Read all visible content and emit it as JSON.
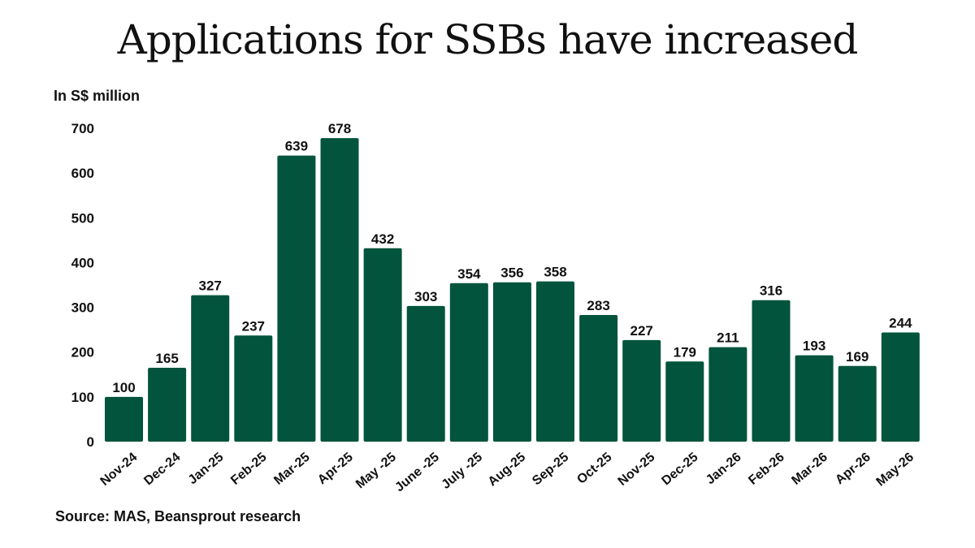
{
  "title": "Applications for SSBs have increased",
  "source": "Source: MAS, Beansprout research",
  "colors": {
    "bar": "#02543c",
    "text": "#111111",
    "background": "#ffffff"
  },
  "chart_data": {
    "type": "bar",
    "title": "Applications for SSBs have increased",
    "ylabel": "In S$ million",
    "xlabel": "",
    "ylim": [
      0,
      700
    ],
    "yticks": [
      0,
      100,
      200,
      300,
      400,
      500,
      600,
      700
    ],
    "grid": false,
    "legend": "none",
    "categories": [
      "Nov-24",
      "Dec-24",
      "Jan-25",
      "Feb-25",
      "Mar-25",
      "Apr-25",
      "May -25",
      "June -25",
      "July -25",
      "Aug-25",
      "Sep-25",
      "Oct-25",
      "Nov-25",
      "Dec-25",
      "Jan-26",
      "Feb-26",
      "Mar-26",
      "Apr-26",
      "May-26"
    ],
    "values": [
      100,
      165,
      327,
      237,
      639,
      678,
      432,
      303,
      354,
      356,
      358,
      283,
      227,
      179,
      211,
      316,
      193,
      169,
      244
    ],
    "data_labels": [
      "100",
      "165",
      "327",
      "237",
      "639",
      "678",
      "432",
      "303",
      "354",
      "356",
      "358",
      "283",
      "227",
      "179",
      "211",
      "316",
      "193",
      "169",
      "244"
    ]
  }
}
